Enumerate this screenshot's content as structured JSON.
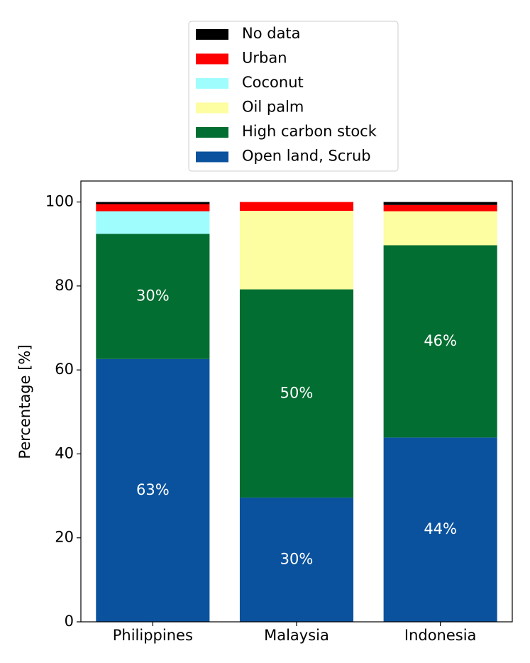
{
  "chart_data": {
    "type": "stacked_bar",
    "ylabel": "Percentage [%]",
    "categories": [
      "Philippines",
      "Malaysia",
      "Indonesia"
    ],
    "series": [
      {
        "name": "Open land, Scrub",
        "color": "#0a529e",
        "values": [
          62.6,
          29.6,
          43.9
        ],
        "value_labels": [
          "63%",
          "30%",
          "44%"
        ]
      },
      {
        "name": "High carbon stock",
        "color": "#036e31",
        "values": [
          29.8,
          49.6,
          45.8
        ],
        "value_labels": [
          "30%",
          "50%",
          "46%"
        ]
      },
      {
        "name": "Oil palm",
        "color": "#fdfda1",
        "values": [
          0,
          18.7,
          8.1
        ]
      },
      {
        "name": "Coconut",
        "color": "#a0fdfd",
        "values": [
          5.4,
          0,
          0
        ]
      },
      {
        "name": "Urban",
        "color": "#fd0000",
        "values": [
          1.7,
          2.1,
          1.5
        ]
      },
      {
        "name": "No data",
        "color": "#000000",
        "values": [
          0.5,
          0,
          0.7
        ]
      }
    ],
    "ylim": [
      0,
      105
    ],
    "yticks": [
      0,
      20,
      40,
      60,
      80,
      100
    ],
    "legend": "top"
  }
}
